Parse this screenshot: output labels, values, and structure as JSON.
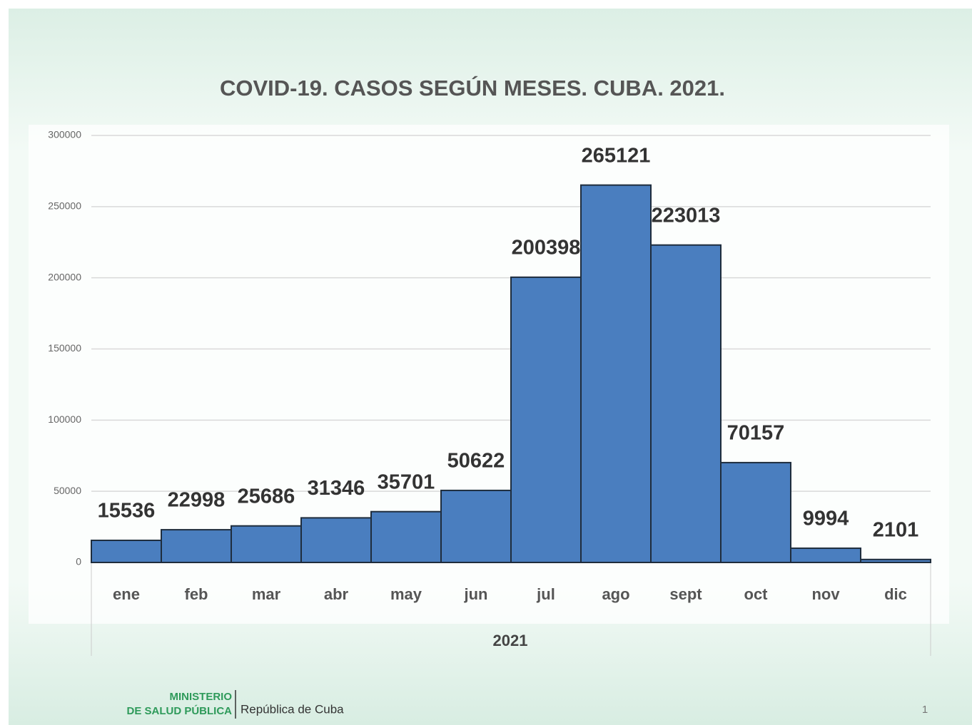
{
  "chart_data": {
    "type": "bar",
    "title": "COVID-19. CASOS SEGÚN MESES. CUBA. 2021.",
    "categories": [
      "ene",
      "feb",
      "mar",
      "abr",
      "may",
      "jun",
      "jul",
      "ago",
      "sept",
      "oct",
      "nov",
      "dic"
    ],
    "values": [
      15536,
      22998,
      25686,
      31346,
      35701,
      50622,
      200398,
      265121,
      223013,
      70157,
      9994,
      2101
    ],
    "color": "#4a7ebf",
    "xlabel": "2021",
    "ylim": [
      0,
      300000
    ],
    "yticks": [
      0,
      50000,
      100000,
      150000,
      200000,
      250000,
      300000
    ],
    "grid": true
  },
  "footer": {
    "ministry_line1": "MINISTERIO",
    "ministry_line2": "DE SALUD PÚBLICA",
    "country": "República de Cuba",
    "page": "1"
  }
}
